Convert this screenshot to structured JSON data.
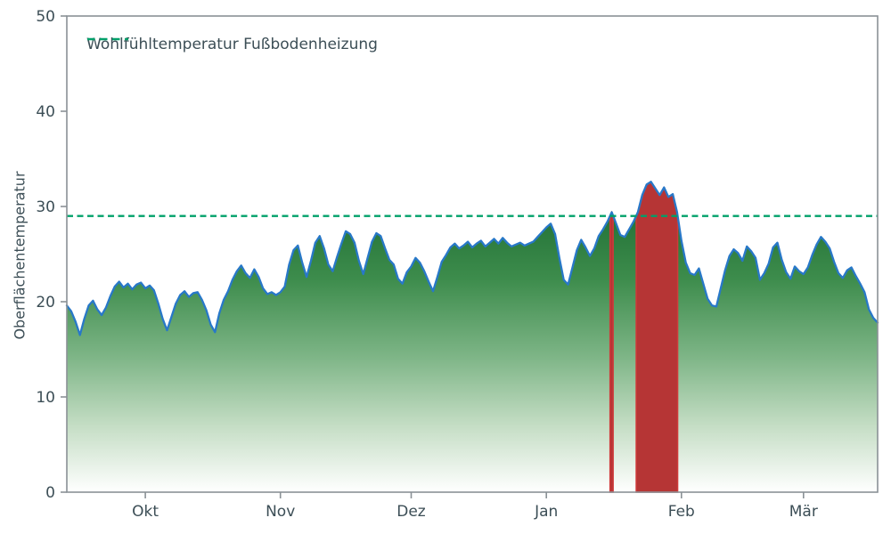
{
  "colors": {
    "line": "#2878c8",
    "comfort": "#00a06a",
    "exceed_fill": "#b63535",
    "exceed_edge": "#d03a3a",
    "text": "#3c4e56",
    "spine": "#8a9196",
    "background": "#ffffff",
    "gradient_stops": [
      [
        "0",
        "#19692f"
      ],
      [
        "0.3",
        "#3d8c4c"
      ],
      [
        "0.55",
        "#7cb485"
      ],
      [
        "0.78",
        "#c4ddc4"
      ],
      [
        "1",
        "#ffffff"
      ]
    ]
  },
  "chart_data": {
    "type": "area",
    "title": "",
    "xlabel": "",
    "ylabel": "Oberflächentemperatur",
    "ylim": [
      0,
      50
    ],
    "yticks": [
      0,
      10,
      20,
      30,
      40,
      50
    ],
    "xlim": [
      0,
      186
    ],
    "x_start": 0,
    "x_step": 1,
    "grid": false,
    "legend_position": "upper-left",
    "month_ticks": [
      {
        "label": "Okt",
        "day": 18
      },
      {
        "label": "Nov",
        "day": 49
      },
      {
        "label": "Dez",
        "day": 79
      },
      {
        "label": "Jan",
        "day": 110
      },
      {
        "label": "Feb",
        "day": 141
      },
      {
        "label": "Mär",
        "day": 169
      }
    ],
    "comfort_line": {
      "label": "Wohlfühltemperatur Fußbodenheizung",
      "value": 29,
      "style": "dashed"
    },
    "exceed_highlight": "columns where the curve exceeds the comfort value are filled red down to 0",
    "series": [
      {
        "name": "Oberflächentemperatur",
        "values": [
          19.6,
          19.0,
          17.9,
          16.5,
          18.2,
          19.6,
          20.1,
          19.2,
          18.6,
          19.4,
          20.6,
          21.6,
          22.1,
          21.5,
          21.9,
          21.3,
          21.8,
          22.0,
          21.4,
          21.7,
          21.2,
          19.8,
          18.2,
          17.0,
          18.4,
          19.8,
          20.7,
          21.1,
          20.5,
          20.9,
          21.0,
          20.2,
          19.1,
          17.6,
          16.8,
          18.8,
          20.2,
          21.1,
          22.3,
          23.2,
          23.8,
          23.0,
          22.5,
          23.4,
          22.6,
          21.4,
          20.8,
          21.0,
          20.7,
          21.0,
          21.6,
          23.9,
          25.4,
          25.9,
          24.1,
          22.6,
          24.3,
          26.2,
          26.9,
          25.6,
          23.9,
          23.2,
          24.7,
          26.1,
          27.4,
          27.1,
          26.2,
          24.3,
          22.9,
          24.6,
          26.3,
          27.2,
          26.9,
          25.6,
          24.4,
          23.9,
          22.4,
          21.9,
          23.1,
          23.7,
          24.6,
          24.1,
          23.2,
          22.1,
          21.1,
          22.6,
          24.2,
          24.9,
          25.7,
          26.1,
          25.6,
          25.9,
          26.3,
          25.7,
          26.1,
          26.4,
          25.8,
          26.2,
          26.6,
          26.1,
          26.7,
          26.2,
          25.8,
          26.0,
          26.2,
          25.9,
          26.1,
          26.3,
          26.8,
          27.3,
          27.8,
          28.2,
          27.1,
          24.6,
          22.3,
          21.8,
          23.6,
          25.4,
          26.5,
          25.7,
          24.8,
          25.6,
          26.9,
          27.6,
          28.4,
          29.4,
          28.2,
          27.0,
          26.8,
          27.6,
          28.4,
          29.4,
          31.2,
          32.3,
          32.6,
          31.9,
          31.2,
          32.0,
          31.0,
          31.3,
          29.4,
          26.4,
          24.1,
          23.0,
          22.8,
          23.5,
          21.9,
          20.3,
          19.6,
          19.5,
          21.4,
          23.3,
          24.8,
          25.5,
          25.1,
          24.3,
          25.8,
          25.3,
          24.6,
          22.3,
          23.0,
          24.0,
          25.7,
          26.2,
          24.4,
          23.1,
          22.4,
          23.7,
          23.2,
          22.9,
          23.6,
          24.9,
          26.0,
          26.8,
          26.3,
          25.6,
          24.2,
          23.0,
          22.5,
          23.3,
          23.6,
          22.7,
          21.9,
          21.0,
          19.2,
          18.3,
          17.8
        ]
      }
    ]
  }
}
